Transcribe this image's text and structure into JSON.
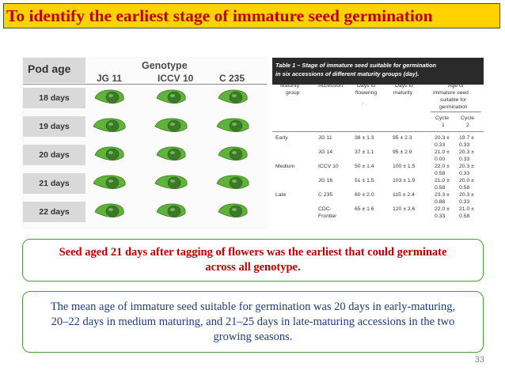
{
  "slide_title": "To identify the earliest stage of immature seed germination",
  "photo": {
    "pod_age_label": "Pod age",
    "genotype_label": "Genotype",
    "genotypes": [
      "JG 11",
      "ICCV 10",
      "C 235"
    ],
    "rows": [
      "18 days",
      "19 days",
      "20 days",
      "21 days",
      "22 days"
    ]
  },
  "table": {
    "title_line1": "Table 1 – Stage of immature seed suitable for germination",
    "title_line2": "in six accessions of different maturity groups (day).",
    "headers": {
      "maturity": "Maturity",
      "group": "group",
      "accession": "Accession",
      "days_to_1": "Days to",
      "flowering": "flowering",
      "days_to_2": "Days to",
      "maturity_col": "maturity",
      "age_of": "Age of",
      "immature_seed": "immature seed",
      "suitable_for": "suitable for",
      "germination": "germination",
      "cycle1_a": "Cycle",
      "cycle1_b": "1",
      "cycle2_a": "Cycle",
      "cycle2_b": "2",
      "dot": "."
    },
    "rows": [
      {
        "group": "Early",
        "accession": "JG 11",
        "flowering": "38 ± 1.3",
        "maturity": "95 ± 2.3",
        "c1a": "20.3 ±",
        "c1b": "0.33",
        "c2a": "19.7 ±",
        "c2b": "0.33",
        "acc2": ""
      },
      {
        "group": "",
        "accession": "JG 14",
        "flowering": "37 ± 1.1",
        "maturity": "95 ± 2.9",
        "c1a": "21.0 ±",
        "c1b": "0.00",
        "c2a": "20.3 ±",
        "c2b": "0.33",
        "acc2": ""
      },
      {
        "group": "Medium",
        "accession": "ICCV 10",
        "flowering": "50 ± 1.4",
        "maturity": "100 ± 1.5",
        "c1a": "22.0 ±",
        "c1b": "0.58",
        "c2a": "20.3 ±",
        "c2b": "0.33",
        "acc2": ""
      },
      {
        "group": "",
        "accession": "JG 16",
        "flowering": "51 ± 1.5",
        "maturity": "103 ± 1.9",
        "c1a": "21.0 ±",
        "c1b": "0.58",
        "c2a": "20.0 ±",
        "c2b": "0.58",
        "acc2": ""
      },
      {
        "group": "Late",
        "accession": "C 235",
        "flowering": "60 ± 2.0",
        "maturity": "115 ± 2.4",
        "c1a": "23.3 ±",
        "c1b": "0.88",
        "c2a": "20.3 ±",
        "c2b": "0.33",
        "acc2": ""
      },
      {
        "group": "",
        "accession": "CDC-",
        "flowering": "65 ± 1.6",
        "maturity": "120 ± 2.6",
        "c1a": "22.0 ±",
        "c1b": "0.33",
        "c2a": "21.0 ±",
        "c2b": "0.58",
        "acc2": "Frontier"
      }
    ]
  },
  "callout1": "Seed aged 21 days after tagging of flowers was the earliest that could germinate\nacross all genotype.",
  "callout2": "The mean age of immature seed suitable for germination was 20 days in early-maturing,\n20–22 days in medium maturing, and 21–25 days in late-maturing accessions in the two\ngrowing seasons.",
  "page_number": "33",
  "colors": {
    "title_bg": "#ffd200",
    "title_text": "#c00000",
    "callout_border": "#4e9a3a",
    "callout1_text": "#c00000",
    "callout2_text": "#1f3b7a"
  }
}
